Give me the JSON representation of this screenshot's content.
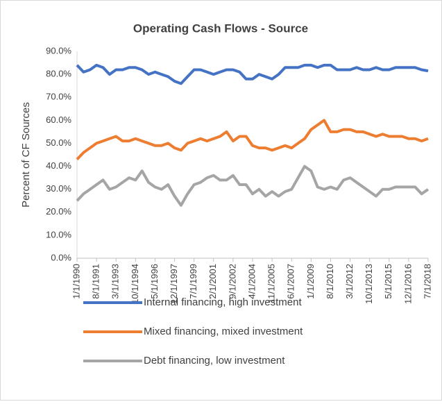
{
  "chart_data": {
    "type": "line",
    "title": "Operating Cash Flows - Source",
    "y_label": "Percent of CF Sources",
    "categories": [
      "1/1/1990",
      null,
      null,
      "8/1/1991",
      null,
      null,
      "3/1/1993",
      null,
      null,
      "10/1/1994",
      null,
      null,
      "5/1/1996",
      null,
      null,
      "12/1/1997",
      null,
      null,
      "7/1/1999",
      null,
      null,
      "2/1/2001",
      null,
      null,
      "9/1/2002",
      null,
      null,
      "4/1/2004",
      null,
      null,
      "11/1/2005",
      null,
      null,
      "6/1/2007",
      null,
      null,
      "1/1/2009",
      null,
      null,
      "8/1/2010",
      null,
      null,
      "3/1/2012",
      null,
      null,
      "10/1/2013",
      null,
      null,
      "5/1/2015",
      null,
      null,
      "12/1/2016",
      null,
      null,
      "7/1/2018"
    ],
    "series": [
      {
        "name": "Internal financing, high investment",
        "color": "#4472c4",
        "values": [
          84,
          81,
          82,
          84,
          83,
          80,
          82,
          82,
          83,
          83,
          82,
          80,
          81,
          80,
          79,
          77,
          76,
          79,
          82,
          82,
          81,
          80,
          81,
          82,
          82,
          81,
          78,
          78,
          80,
          79,
          78,
          80,
          83,
          83,
          83,
          84,
          84,
          83,
          84,
          84,
          82,
          82,
          82,
          83,
          82,
          82,
          83,
          82,
          82,
          83,
          83,
          83,
          83,
          82,
          81.5
        ]
      },
      {
        "name": "Mixed financing, mixed investment",
        "color": "#ed7d31",
        "values": [
          43,
          46,
          48,
          50,
          51,
          52,
          53,
          51,
          51,
          52,
          51,
          50,
          49,
          49,
          50,
          48,
          47,
          50,
          51,
          52,
          51,
          52,
          53,
          55,
          51,
          53,
          53,
          49,
          48,
          48,
          47,
          48,
          49,
          48,
          50,
          52,
          56,
          58,
          60,
          55,
          55,
          56,
          56,
          55,
          55,
          54,
          53,
          54,
          53,
          53,
          53,
          52,
          52,
          51,
          52
        ]
      },
      {
        "name": "Debt financing, low investment",
        "color": "#a5a5a5",
        "values": [
          25,
          28,
          30,
          32,
          34,
          30,
          31,
          33,
          35,
          34,
          38,
          33,
          31,
          30,
          32,
          27,
          23,
          28,
          32,
          33,
          35,
          36,
          34,
          34,
          36,
          32,
          32,
          28,
          30,
          27,
          29,
          27,
          29,
          30,
          35,
          40,
          38,
          31,
          30,
          31,
          30,
          34,
          35,
          33,
          31,
          29,
          27,
          30,
          30,
          31,
          31,
          31,
          31,
          28,
          30
        ]
      }
    ],
    "ylim": [
      0,
      90
    ],
    "yticks": [
      {
        "value": 0,
        "label": "0.0%"
      },
      {
        "value": 10,
        "label": "10.0%"
      },
      {
        "value": 20,
        "label": "20.0%"
      },
      {
        "value": 30,
        "label": "30.0%"
      },
      {
        "value": 40,
        "label": "40.0%"
      },
      {
        "value": 50,
        "label": "50.0%"
      },
      {
        "value": 60,
        "label": "60.0%"
      },
      {
        "value": 70,
        "label": "70.0%"
      },
      {
        "value": 80,
        "label": "80.0%"
      },
      {
        "value": 90,
        "label": "90.0%"
      }
    ],
    "grid": false,
    "legend": "bottom"
  }
}
